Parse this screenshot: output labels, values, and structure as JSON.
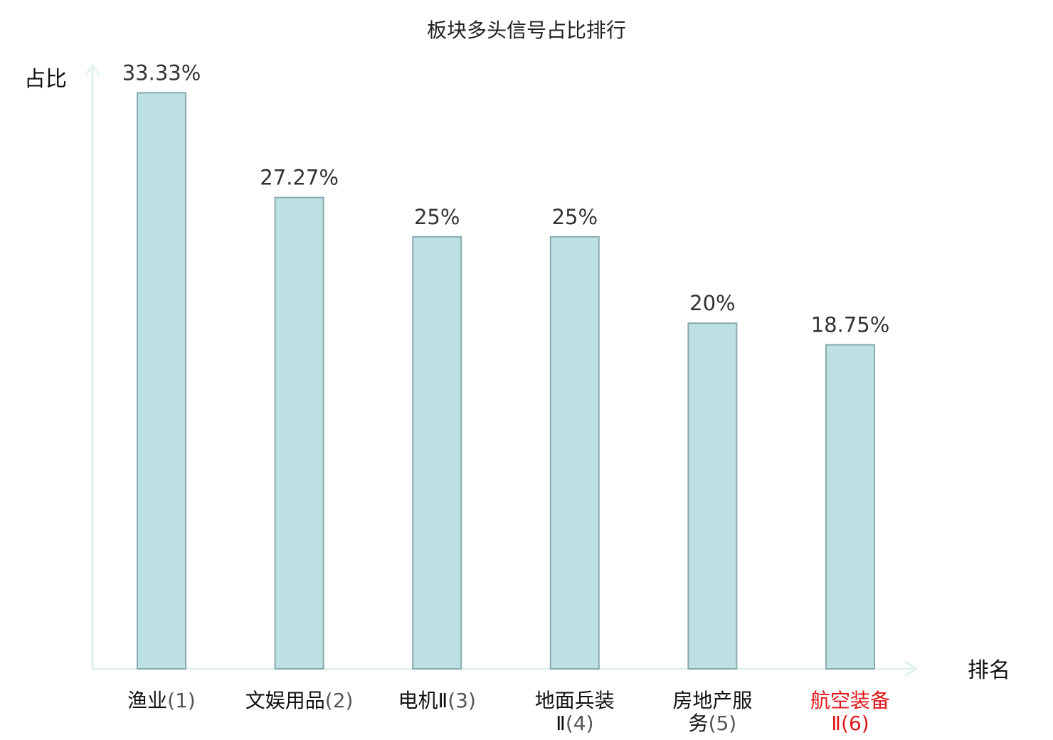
{
  "chart_data": {
    "type": "bar",
    "title": "板块多头信号占比排行",
    "ylabel": "占比",
    "xlabel": "排名",
    "categories": [
      {
        "name": "渔业",
        "rank": "(1)",
        "highlight": false
      },
      {
        "name": "文娱用品",
        "rank": "(2)",
        "highlight": false
      },
      {
        "name": "电机Ⅱ",
        "rank": "(3)",
        "highlight": false
      },
      {
        "name": "地面兵装Ⅱ",
        "rank": "(4)",
        "highlight": false
      },
      {
        "name": "房地产服务",
        "rank": "(5)",
        "highlight": false
      },
      {
        "name": "航空装备Ⅱ",
        "rank": "(6)",
        "highlight": true
      }
    ],
    "values": [
      33.33,
      27.27,
      25,
      25,
      20,
      18.75
    ],
    "value_labels": [
      "33.33%",
      "27.27%",
      "25%",
      "25%",
      "20%",
      "18.75%"
    ],
    "ylim": [
      0,
      34.5
    ],
    "grid": false,
    "colors": {
      "bar_fill": "#bde1e3",
      "bar_stroke": "#8aabad",
      "axis": "#e0f1ee",
      "highlight_text": "#e0191c",
      "normal_text": "#111111"
    }
  }
}
